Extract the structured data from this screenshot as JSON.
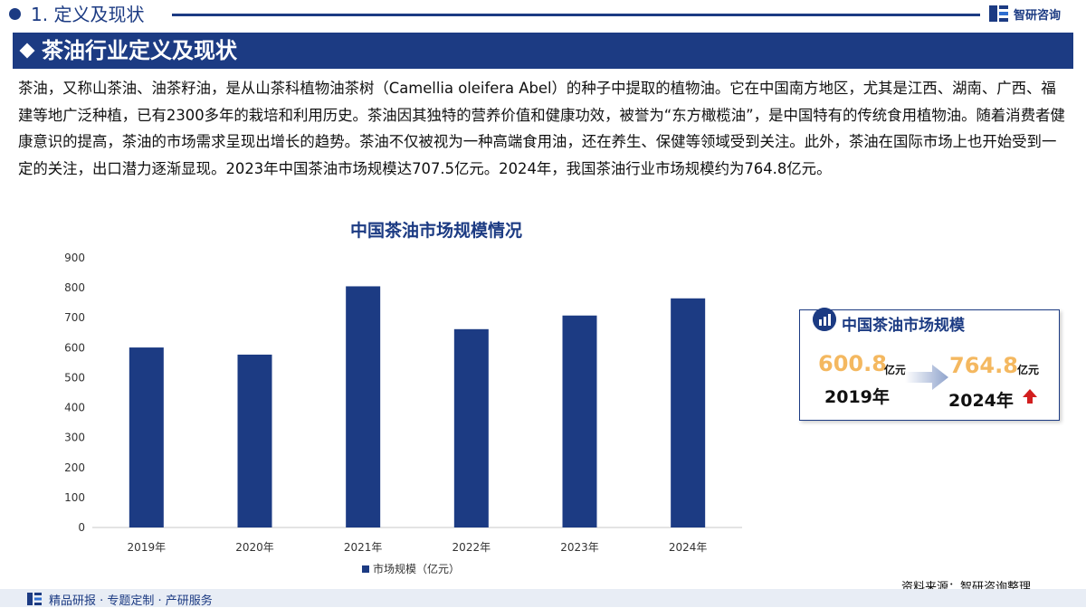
{
  "section": {
    "title": "1. 定义及现状"
  },
  "brand": {
    "name": "智研咨询"
  },
  "header": {
    "title": "茶油行业定义及现状"
  },
  "intro": {
    "text": "茶油，又称山茶油、油茶籽油，是从山茶科植物油茶树（Camellia oleifera Abel）的种子中提取的植物油。它在中国南方地区，尤其是江西、湖南、广西、福建等地广泛种植，已有2300多年的栽培和利用历史。茶油因其独特的营养价值和健康功效，被誉为“东方橄榄油”，是中国特有的传统食用植物油。随着消费者健康意识的提高，茶油的市场需求呈现出增长的趋势。茶油不仅被视为一种高端食用油，还在养生、保健等领域受到关注。此外，茶油在国际市场上也开始受到一定的关注，出口潜力逐渐显现。2023年中国茶油市场规模达707.5亿元。2024年，我国茶油行业市场规模约为764.8亿元。"
  },
  "chart_data": {
    "type": "bar",
    "title": "中国茶油市场规模情况",
    "categories": [
      "2019年",
      "2020年",
      "2021年",
      "2022年",
      "2023年",
      "2024年"
    ],
    "series": [
      {
        "name": "市场规模（亿元）",
        "values": [
          600.8,
          577,
          805,
          662,
          707.5,
          764.8
        ]
      }
    ],
    "ylim": [
      0,
      900
    ],
    "yticks": [
      0,
      100,
      200,
      300,
      400,
      500,
      600,
      700,
      800,
      900
    ],
    "grid": false,
    "legend": "bottom",
    "bar_color": "#1c3b83"
  },
  "kpi": {
    "title": "中国茶油市场规模",
    "start_value": "600.8",
    "start_unit": "亿元",
    "start_year": "2019年",
    "end_value": "764.8",
    "end_unit": "亿元",
    "end_year": "2024年"
  },
  "source": {
    "text": "资料来源：智研咨询整理"
  },
  "footer": {
    "text": "精品研报 · 专题定制 · 产研服务"
  }
}
